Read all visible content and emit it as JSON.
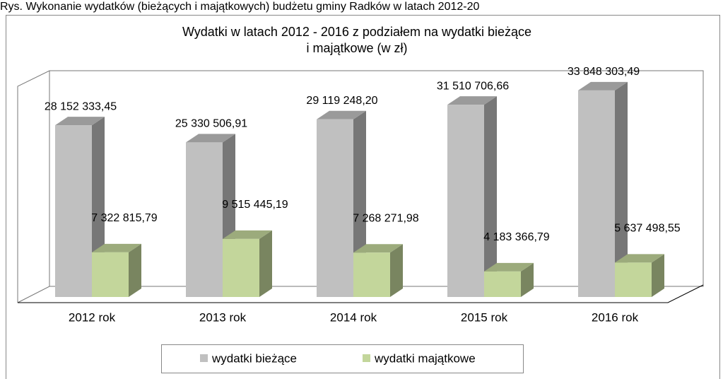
{
  "caption": "Rys. Wykonanie wydatków (bieżących i majątkowych) budżetu gminy Radków w latach 2012-20",
  "chart_data": {
    "type": "bar3d",
    "title": [
      "Wydatki w latach 2012 - 2016 z podziałem na wydatki bieżące",
      "i majątkowe (w zł)"
    ],
    "categories": [
      "2012 rok",
      "2013 rok",
      "2014 rok",
      "2015 rok",
      "2016 rok"
    ],
    "ylim": [
      0,
      35000000
    ],
    "legend": "bottom",
    "series": [
      {
        "name": "wydatki bieżące",
        "color": "#c0c0c0",
        "values": [
          28152333.45,
          25330506.91,
          29119248.2,
          31510706.66,
          33848303.49
        ],
        "value_labels": [
          "28 152 333,45",
          "25 330 506,91",
          "29 119 248,20",
          "31 510 706,66",
          "33 848 303,49"
        ]
      },
      {
        "name": "wydatki majątkowe",
        "color": "#c3d69b",
        "values": [
          7322815.79,
          9515445.19,
          7268271.98,
          4183366.79,
          5637498.55
        ],
        "value_labels": [
          "7 322 815,79",
          "9 515 445,19",
          "7 268 271,98",
          "4 183 366,79",
          "5 637 498,55"
        ]
      }
    ]
  }
}
